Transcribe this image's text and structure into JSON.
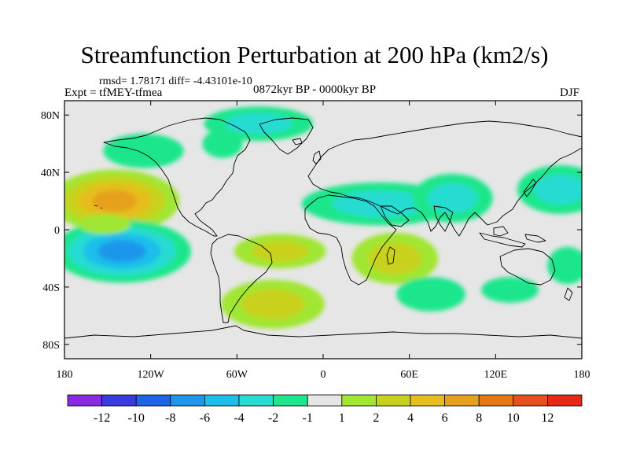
{
  "chart_data": {
    "type": "heatmap",
    "title": "Streamfunction Perturbation at 200 hPa (km2/s)",
    "stats_line": "rmsd= 1.78171 diff= -4.43101e-10",
    "experiment_label": "Expt = tfMEY-tfmea",
    "period_label": "0872kyr BP - 0000kyr BP",
    "season_label": "DJF",
    "xlim": [
      -180,
      180
    ],
    "ylim": [
      -90,
      90
    ],
    "x_ticks": [
      {
        "value": -180,
        "label": "180"
      },
      {
        "value": -120,
        "label": "120W"
      },
      {
        "value": -60,
        "label": "60W"
      },
      {
        "value": 0,
        "label": "0"
      },
      {
        "value": 60,
        "label": "60E"
      },
      {
        "value": 120,
        "label": "120E"
      },
      {
        "value": 180,
        "label": "180"
      }
    ],
    "y_ticks": [
      {
        "value": 80,
        "label": "80N"
      },
      {
        "value": 40,
        "label": "40N"
      },
      {
        "value": 0,
        "label": "0"
      },
      {
        "value": -40,
        "label": "40S"
      },
      {
        "value": -80,
        "label": "80S"
      }
    ],
    "colorbar": {
      "colors": [
        "#8a2be2",
        "#3a3ae0",
        "#1e64e6",
        "#1e96eb",
        "#1ebeeb",
        "#28dcd2",
        "#1ee68c",
        "#e6e6e6",
        "#a0e632",
        "#c8d21e",
        "#e6be1e",
        "#e6a01e",
        "#e67814",
        "#e6501e",
        "#e62814"
      ],
      "labels": [
        "-12",
        "-10",
        "-8",
        "-6",
        "-4",
        "-2",
        "-1",
        "1",
        "2",
        "4",
        "6",
        "8",
        "10",
        "12"
      ],
      "label_boundaries": [
        1,
        2,
        3,
        4,
        5,
        6,
        7,
        8,
        9,
        10,
        11,
        12,
        13,
        14
      ]
    },
    "anomalies": [
      {
        "lon": -145,
        "lat": 20,
        "rx": 45,
        "ry": 22,
        "value": 3.5,
        "peak": 7.5
      },
      {
        "lon": -140,
        "lat": -15,
        "rx": 48,
        "ry": 22,
        "value": -2.5,
        "peak": -7.5
      },
      {
        "lon": -45,
        "lat": 74,
        "rx": 38,
        "ry": 12,
        "value": -1.5,
        "peak": -3
      },
      {
        "lon": -125,
        "lat": 55,
        "rx": 28,
        "ry": 12,
        "value": -1.5,
        "peak": -1.5
      },
      {
        "lon": -70,
        "lat": 60,
        "rx": 14,
        "ry": 10,
        "value": -1.5,
        "peak": -1.5
      },
      {
        "lon": -30,
        "lat": -15,
        "rx": 32,
        "ry": 12,
        "value": 1.5,
        "peak": 3
      },
      {
        "lon": -35,
        "lat": -52,
        "rx": 36,
        "ry": 17,
        "value": 1.5,
        "peak": 3
      },
      {
        "lon": 40,
        "lat": 18,
        "rx": 55,
        "ry": 15,
        "value": -1.5,
        "peak": -3
      },
      {
        "lon": 90,
        "lat": 22,
        "rx": 28,
        "ry": 17,
        "value": -1.5,
        "peak": -3
      },
      {
        "lon": 50,
        "lat": -20,
        "rx": 30,
        "ry": 18,
        "value": 1.5,
        "peak": 3
      },
      {
        "lon": 75,
        "lat": -45,
        "rx": 24,
        "ry": 12,
        "value": -1.5,
        "peak": -1.5
      },
      {
        "lon": 165,
        "lat": 28,
        "rx": 30,
        "ry": 17,
        "value": -1.5,
        "peak": -3
      },
      {
        "lon": 130,
        "lat": -42,
        "rx": 20,
        "ry": 9,
        "value": -1.5,
        "peak": -1.5
      },
      {
        "lon": 170,
        "lat": -25,
        "rx": 14,
        "ry": 13,
        "value": -1.5,
        "peak": -1.5
      },
      {
        "lon": -152,
        "lat": 4,
        "rx": 18,
        "ry": 7,
        "value": 1.5,
        "peak": 1.5
      }
    ]
  }
}
